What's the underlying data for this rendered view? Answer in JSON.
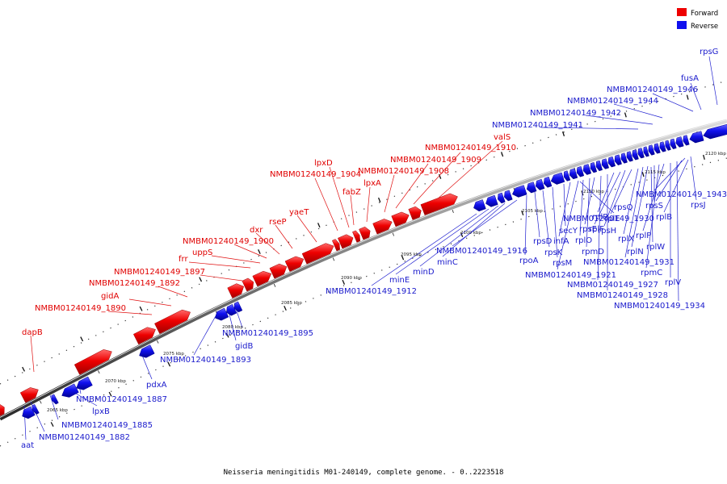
{
  "colors": {
    "forward": "#ee0000",
    "forward_dark": "#a00000",
    "reverse": "#1010ee",
    "reverse_dark": "#000090",
    "forward_label": "#e00000",
    "reverse_label": "#1a1acc",
    "leader_forward": "#e01010",
    "leader_reverse": "#2020d0",
    "backbone": "#7a7a7a"
  },
  "legend": {
    "forward_label": "Forward",
    "reverse_label": "Reverse"
  },
  "caption": "Neisseria meningitidis M01-240149, complete genome. - 0..2223518",
  "ticks": [
    "2065 kbp",
    "2070 kbp",
    "2075 kbp",
    "2080 kbp",
    "2085 kbp",
    "2090 kbp",
    "2095 kbp",
    "2100 kbp",
    "2105 kbp",
    "2110 kbp",
    "2115 kbp",
    "2120 kbp"
  ],
  "forward_labels": [
    "dapB",
    "NMBM01240149_1890",
    "gidA",
    "NMBM01240149_1892",
    "NMBM01240149_1897",
    "frr",
    "uppS",
    "NMBM01240149_1900",
    "dxr",
    "rseP",
    "yaeT",
    "NMBM01240149_1904",
    "lpxD",
    "fabZ",
    "lpxA",
    "NMBM01240149_1908",
    "NMBM01240149_1909",
    "NMBM01240149_1910",
    "valS"
  ],
  "reverse_labels": [
    "aat",
    "NMBM01240149_1882",
    "NMBM01240149_1885",
    "lpxB",
    "NMBM01240149_1887",
    "pdxA",
    "NMBM01240149_1893",
    "gidB",
    "NMBM01240149_1895",
    "NMBM01240149_1912",
    "minE",
    "minD",
    "minC",
    "NMBM01240149_1916",
    "rpoA",
    "rpsD",
    "rpsK",
    "rpsM",
    "secY",
    "infA",
    "NMBM01240149_1921",
    "rplO",
    "rpmD",
    "rpsE",
    "NMBM01240149_1927",
    "NMBM01240149_1928",
    "rplR",
    "rplF",
    "rpsH",
    "rplE",
    "rplX",
    "NMBM01240149_1930",
    "NMBM01240149_1931",
    "rplN",
    "rpsQ",
    "rpmC",
    "rplP",
    "rplV",
    "NMBM01240149_1934",
    "rpsS",
    "rplB",
    "rplW",
    "NMBM01240149_1943",
    "rpsJ",
    "NMBM01240149_1941",
    "NMBM01240149_1942",
    "NMBM01240149_1944",
    "NMBM01240149_1946",
    "fusA",
    "rpsG"
  ]
}
